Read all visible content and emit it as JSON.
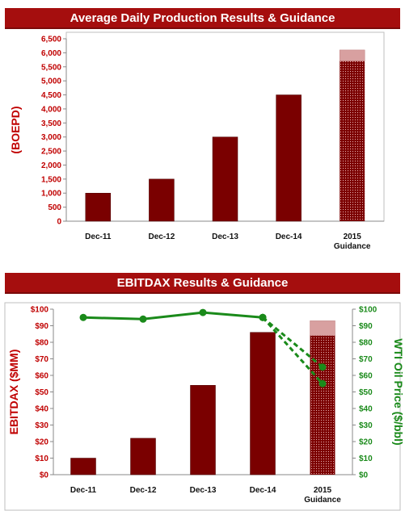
{
  "colors": {
    "banner": "#a50e0e",
    "bar": "#7a0000",
    "bar_projected_light": "#d8a0a0",
    "axis_red": "#c00000",
    "oil_green": "#1a8a1a"
  },
  "chart_data": [
    {
      "type": "bar",
      "title": "Average Daily Production Results & Guidance",
      "categories": [
        "Dec-11",
        "Dec-12",
        "Dec-13",
        "Dec-14",
        "2015 Guidance"
      ],
      "values": [
        1000,
        1500,
        3000,
        4500,
        5700
      ],
      "guidance_range": {
        "category": "2015 Guidance",
        "low": 5700,
        "high": 6100
      },
      "ylabel": "(BOEPD)",
      "ylim": [
        0,
        6500
      ],
      "yticks": [
        "0",
        "500",
        "1,000",
        "1,500",
        "2,000",
        "2,500",
        "3,000",
        "3,500",
        "4,000",
        "4,500",
        "5,000",
        "5,500",
        "6,000",
        "6,500"
      ],
      "grid": false
    },
    {
      "type": "bar",
      "title": "EBITDAX Results & Guidance",
      "categories": [
        "Dec-11",
        "Dec-12",
        "Dec-13",
        "Dec-14",
        "2015 Guidance"
      ],
      "values": [
        10,
        22,
        54,
        86,
        84
      ],
      "guidance_range": {
        "category": "2015 Guidance",
        "low": 84,
        "high": 93
      },
      "ylabel": "EBITDAX ($MM)",
      "ylim": [
        0,
        100
      ],
      "yticks": [
        "$0",
        "$10",
        "$20",
        "$30",
        "$40",
        "$50",
        "$60",
        "$70",
        "$80",
        "$90",
        "$100"
      ],
      "secondary_axis": {
        "label": "WTI Oil Price ($/bbl)",
        "ylim": [
          0,
          100
        ],
        "yticks": [
          "$0",
          "$10",
          "$20",
          "$30",
          "$40",
          "$50",
          "$60",
          "$70",
          "$80",
          "$90",
          "$100"
        ]
      },
      "series": [
        {
          "type": "line",
          "axis": "secondary",
          "style": "solid",
          "values": [
            95,
            94,
            98,
            95,
            null
          ]
        },
        {
          "type": "line",
          "axis": "secondary",
          "style": "dashed",
          "x": [
            "Dec-14",
            "2015 Guidance"
          ],
          "values": [
            95,
            65
          ]
        },
        {
          "type": "line",
          "axis": "secondary",
          "style": "dashed",
          "x": [
            "Dec-14",
            "2015 Guidance"
          ],
          "values": [
            95,
            55
          ]
        }
      ],
      "grid": false
    }
  ]
}
